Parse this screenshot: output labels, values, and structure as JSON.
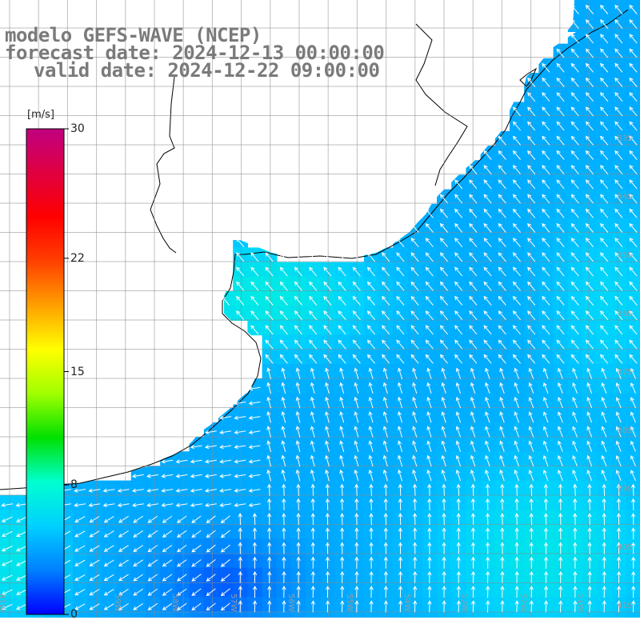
{
  "title": {
    "line1": "modelo GEFS-WAVE (NCEP)",
    "line2": "forecast date: 2024-12-13 00:00:00",
    "line3": "valid date: 2024-12-22 09:00:00"
  },
  "colorbar": {
    "unit": "[m/s]",
    "ticks": [
      "30",
      "22",
      "15",
      "8",
      "0"
    ],
    "tick_values": [
      30,
      22,
      15,
      8,
      0
    ],
    "range": [
      0,
      30
    ],
    "colors": [
      "#0000ff",
      "#0080ff",
      "#00d0ff",
      "#00ffd0",
      "#00e000",
      "#a0ff00",
      "#ffff00",
      "#ffa000",
      "#ff4000",
      "#ff0000",
      "#e00040",
      "#c00080"
    ]
  },
  "map": {
    "variable": "wind speed and direction",
    "lon_labels": [
      "61W",
      "60W",
      "59W",
      "58W",
      "57W",
      "56W",
      "55W",
      "54W",
      "53W",
      "52W",
      "51W"
    ],
    "lat_labels": [
      "33S",
      "34S",
      "35S",
      "36S",
      "37S",
      "38S",
      "39S",
      "40S",
      "41S"
    ],
    "colors": {
      "land": "#ffffff",
      "grid": "#8a8a8a",
      "coast": "#000000",
      "arrow": "#ffffff"
    }
  }
}
